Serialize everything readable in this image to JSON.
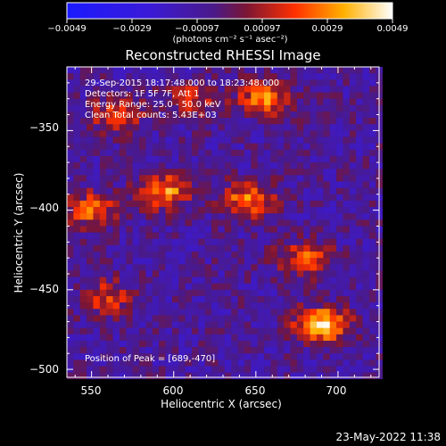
{
  "colorbar": {
    "ticks": [
      "−0.0049",
      "−0.0029",
      "−0.00097",
      "0.00097",
      "0.0029",
      "0.0049"
    ],
    "unit": "(photons cm⁻² s⁻¹ asec⁻²)"
  },
  "chart_data": {
    "type": "heatmap",
    "title": "Reconstructed RHESSI Image",
    "xlabel": "Heliocentric X (arcsec)",
    "ylabel": "Heliocentric Y (arcsec)",
    "xlim": [
      535,
      725
    ],
    "ylim": [
      -505,
      -310
    ],
    "xticks": [
      "550",
      "600",
      "650",
      "700"
    ],
    "yticks": [
      "−350",
      "−400",
      "−450",
      "−500"
    ],
    "vmin": -0.0049,
    "vmax": 0.0049,
    "colormap": "blue-purple-red-yellow-white",
    "annotations": [
      "29-Sep-2015 18:17:48.000 to 18:23:48.000",
      "Detectors: 1F 5F 7F, Att 1",
      "Energy Range: 25.0 - 50.0 keV",
      "Clean     Total counts: 5.43E+03"
    ],
    "peak_label": "Position of Peak = [689,-470]",
    "sources": [
      {
        "x": 690,
        "y": -472,
        "peak": 0.0049
      },
      {
        "x": 595,
        "y": -388,
        "peak": 0.0038
      },
      {
        "x": 655,
        "y": -330,
        "peak": 0.0036
      },
      {
        "x": 550,
        "y": -400,
        "peak": 0.0032
      },
      {
        "x": 645,
        "y": -393,
        "peak": 0.0035
      },
      {
        "x": 680,
        "y": -430,
        "peak": 0.003
      },
      {
        "x": 565,
        "y": -340,
        "peak": 0.0028
      },
      {
        "x": 560,
        "y": -455,
        "peak": 0.0026
      },
      {
        "x": 612,
        "y": -330,
        "peak": 0.0022
      }
    ]
  },
  "timestamp": "23-May-2022 11:38"
}
